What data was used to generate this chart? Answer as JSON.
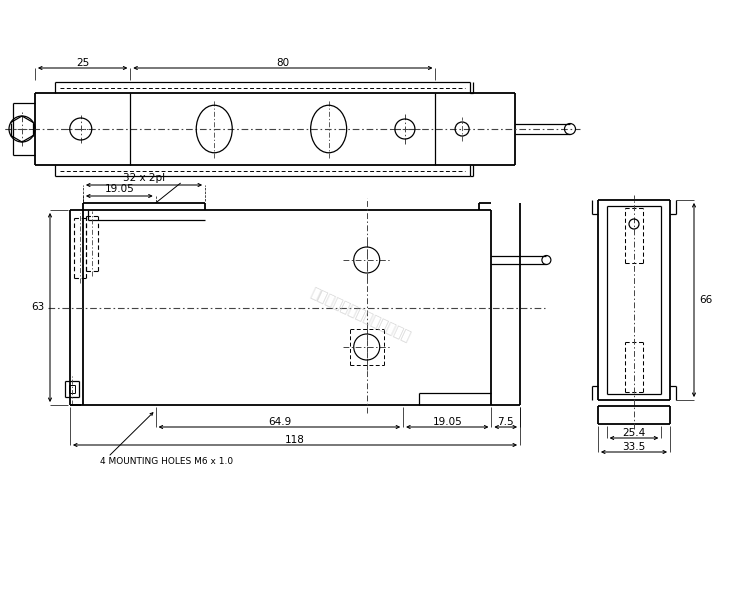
{
  "bg_color": "#ffffff",
  "lc": "#000000",
  "fs": 7.5,
  "dims": {
    "32x2pl": "32 x 2pl",
    "19_05": "19.05",
    "63": "63",
    "64_9": "64.9",
    "19_05b": "19.05",
    "7_5": "7.5",
    "118": "118",
    "mounting": "4 MOUNTING HOLES M6 x 1.0",
    "66": "66",
    "25_4": "25.4",
    "33_5": "33.5",
    "25": "25",
    "80": "80"
  },
  "watermark": "广州众鑑自動化科技有限公司"
}
